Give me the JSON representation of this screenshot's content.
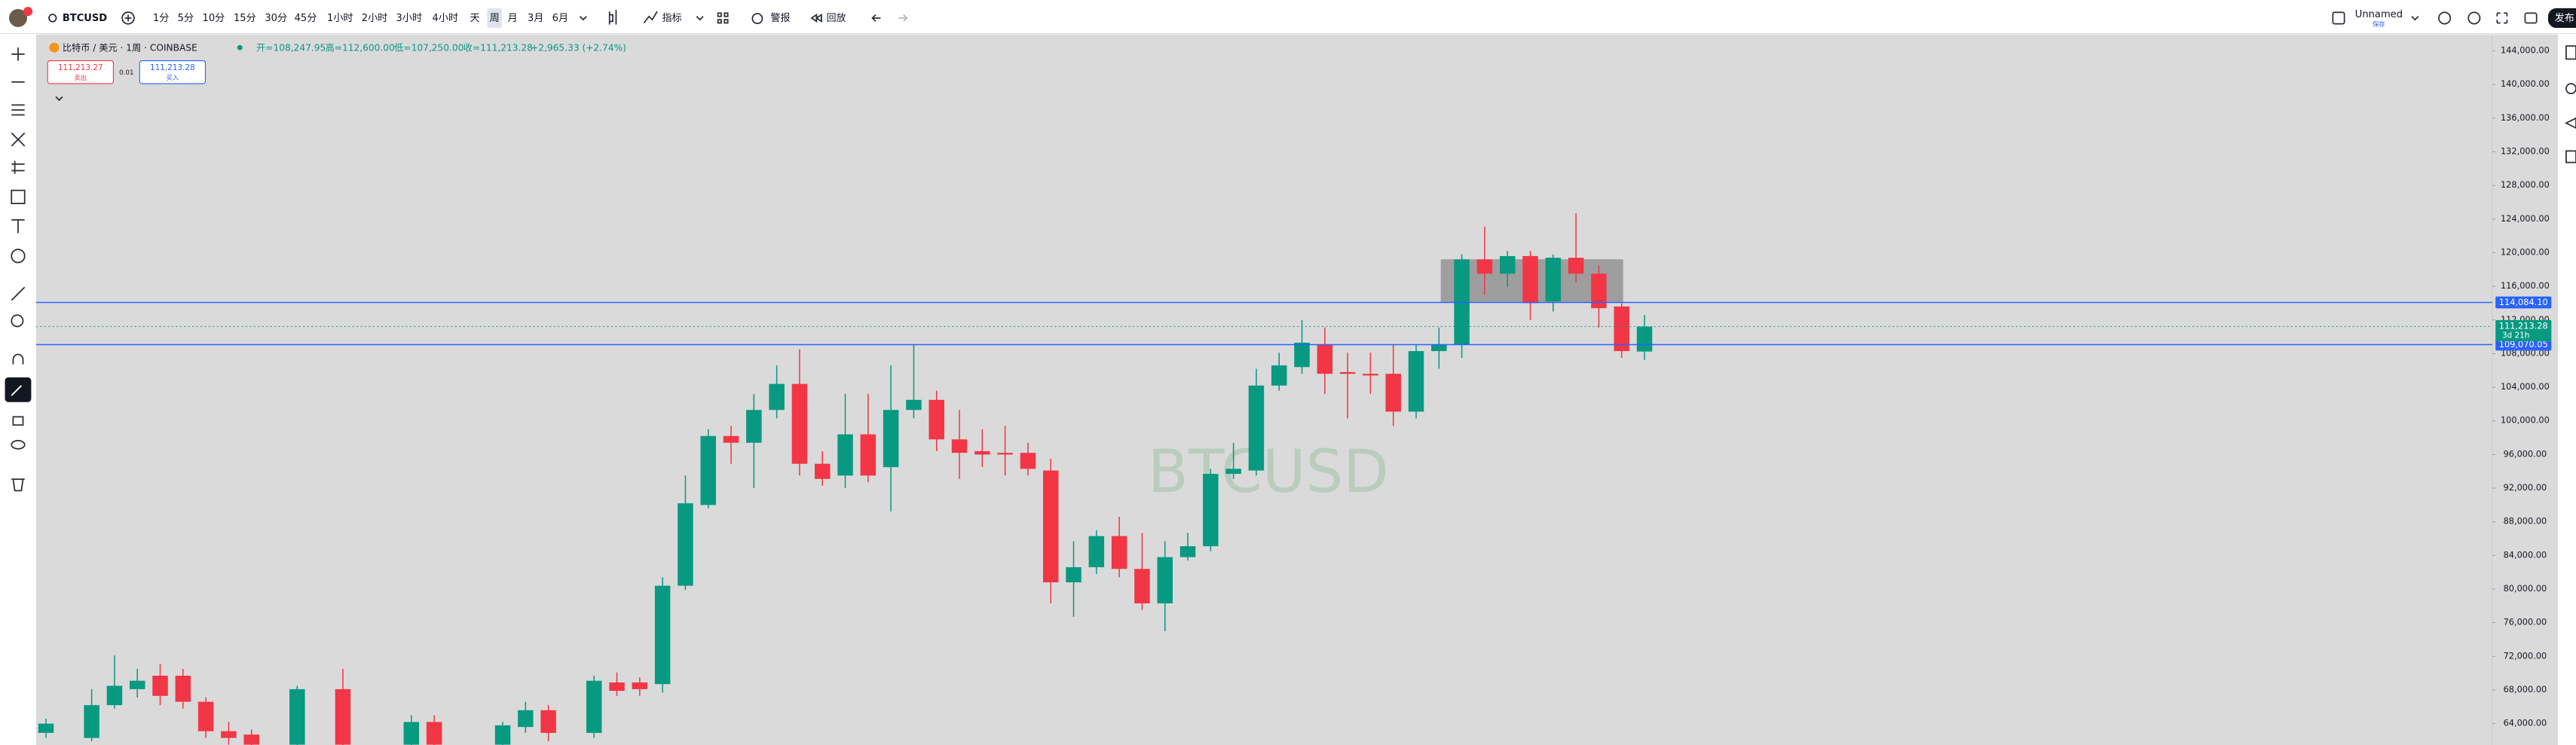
{
  "toolbar": {
    "symbol": "BTCUSD",
    "intervals": [
      "1分",
      "5分",
      "10分",
      "15分",
      "30分",
      "45分",
      "1小时",
      "2小时",
      "3小时",
      "4小时",
      "天",
      "周",
      "月",
      "3月",
      "6月"
    ],
    "selected_index": 11,
    "indicators": "指标",
    "alerts": "警报",
    "replay": "回放",
    "layout_name": "Unnamed",
    "save": "保存",
    "publish": "发布"
  },
  "legend": {
    "title": "比特币 / 美元 · 1周 · COINBASE",
    "open": "开=108,247.95",
    "high": "高=112,600.00",
    "low": "低=107,250.00",
    "close": "收=111,213.28",
    "change": "+2,965.33 (+2.74%)"
  },
  "trade": {
    "sell_price": "111,213.27",
    "sell": "卖出",
    "spread": "0.01",
    "buy_price": "111,213.28",
    "buy": "买入"
  },
  "watermark": "BTCUSD",
  "chart_data": {
    "type": "candlestick",
    "up_color": "#089981",
    "down_color": "#f23645",
    "ylim": [
      61460,
      145950
    ],
    "yticks": [
      {
        "value": 144000,
        "label": "144,000.00"
      },
      {
        "value": 140000,
        "label": "140,000.00"
      },
      {
        "value": 136000,
        "label": "136,000.00"
      },
      {
        "value": 132000,
        "label": "132,000.00"
      },
      {
        "value": 128000,
        "label": "128,000.00"
      },
      {
        "value": 124000,
        "label": "124,000.00"
      },
      {
        "value": 120000,
        "label": "120,000.00"
      },
      {
        "value": 116000,
        "label": "116,000.00"
      },
      {
        "value": 112000,
        "label": "112,000.00"
      },
      {
        "value": 108000,
        "label": "108,000.00"
      },
      {
        "value": 104000,
        "label": "104,000.00"
      },
      {
        "value": 100000,
        "label": "100,000.00"
      },
      {
        "value": 96000,
        "label": "96,000.00"
      },
      {
        "value": 92000,
        "label": "92,000.00"
      },
      {
        "value": 88000,
        "label": "88,000.00"
      },
      {
        "value": 84000,
        "label": "84,000.00"
      },
      {
        "value": 80000,
        "label": "80,000.00"
      },
      {
        "value": 76000,
        "label": "76,000.00"
      },
      {
        "value": 72000,
        "label": "72,000.00"
      },
      {
        "value": 68000,
        "label": "68,000.00"
      },
      {
        "value": 64000,
        "label": "64,000.00"
      }
    ],
    "open": [
      62900,
      null,
      62300,
      66200,
      68100,
      69700,
      69700,
      66600,
      63100,
      62700,
      null,
      61500,
      null,
      68100,
      null,
      null,
      61500,
      64200,
      null,
      null,
      61500,
      63600,
      65600,
      null,
      62900,
      68900,
      68900,
      68700,
      80400,
      90000,
      98200,
      97400,
      101300,
      104400,
      94900,
      93500,
      98400,
      94500,
      101300,
      102500,
      97800,
      96400,
      96200,
      96200,
      94100,
      80800,
      82600,
      86300,
      82400,
      78300,
      83800,
      85100,
      93700,
      94100,
      104200,
      106400,
      109100,
      105800,
      105600,
      105600,
      101100,
      108300,
      109100,
      119200,
      117500,
      119600,
      114200,
      119400,
      117500,
      113600,
      108247.95
    ],
    "high": [
      64600,
      null,
      68100,
      72100,
      70500,
      71100,
      70500,
      67100,
      64200,
      63300,
      null,
      68500,
      null,
      70500,
      null,
      null,
      65000,
      65000,
      null,
      null,
      64200,
      66600,
      66200,
      null,
      69700,
      70100,
      69500,
      81400,
      93500,
      99000,
      99400,
      103200,
      106600,
      108500,
      96400,
      103200,
      103200,
      106600,
      109100,
      103600,
      101300,
      99000,
      99400,
      97400,
      95500,
      85700,
      87000,
      88600,
      86700,
      85700,
      86700,
      94300,
      97400,
      106200,
      108100,
      112000,
      111100,
      108100,
      108100,
      109100,
      109100,
      111100,
      119800,
      123100,
      120200,
      120200,
      119800,
      124700,
      118500,
      114000,
      112600
    ],
    "low": [
      62300,
      null,
      61900,
      65800,
      67100,
      66200,
      65800,
      62300,
      61500,
      61100,
      null,
      61100,
      null,
      61100,
      null,
      null,
      61100,
      61100,
      null,
      null,
      61100,
      62900,
      61900,
      null,
      62300,
      67300,
      67300,
      67700,
      79900,
      89600,
      94900,
      92000,
      100300,
      93500,
      92300,
      92000,
      92700,
      89200,
      100300,
      96400,
      93100,
      94500,
      93500,
      93500,
      78300,
      76700,
      81800,
      81400,
      77500,
      75000,
      83400,
      84500,
      93100,
      93500,
      103600,
      105600,
      103200,
      100300,
      103200,
      99400,
      100300,
      106200,
      107500,
      115000,
      115900,
      112000,
      113000,
      116500,
      111100,
      107500,
      107250
    ],
    "close": [
      64000,
      null,
      66200,
      68500,
      69100,
      67300,
      66600,
      63100,
      62300,
      61500,
      null,
      68100,
      null,
      61500,
      null,
      null,
      64200,
      61500,
      null,
      null,
      63800,
      65600,
      62900,
      null,
      69100,
      67900,
      68100,
      80400,
      90200,
      98200,
      97400,
      101300,
      104400,
      94900,
      93100,
      98400,
      93500,
      101300,
      102500,
      97800,
      96200,
      96000,
      96000,
      94300,
      80800,
      82600,
      86300,
      82400,
      78300,
      83800,
      85100,
      93700,
      94300,
      104200,
      106600,
      109300,
      105600,
      105600,
      105400,
      101100,
      108300,
      109100,
      119200,
      117500,
      119600,
      114000,
      119400,
      117500,
      113400,
      108300,
      111213.28
    ],
    "lines": [
      {
        "value": 114084.1,
        "label": "114,084.10",
        "color": "#2962ff"
      },
      {
        "value": 109070.05,
        "label": "109,070.05",
        "color": "#2962ff"
      }
    ],
    "last": {
      "value": 111213.28,
      "label": "111,213.28",
      "countdown": "3d 21h",
      "color": "#089981"
    }
  }
}
